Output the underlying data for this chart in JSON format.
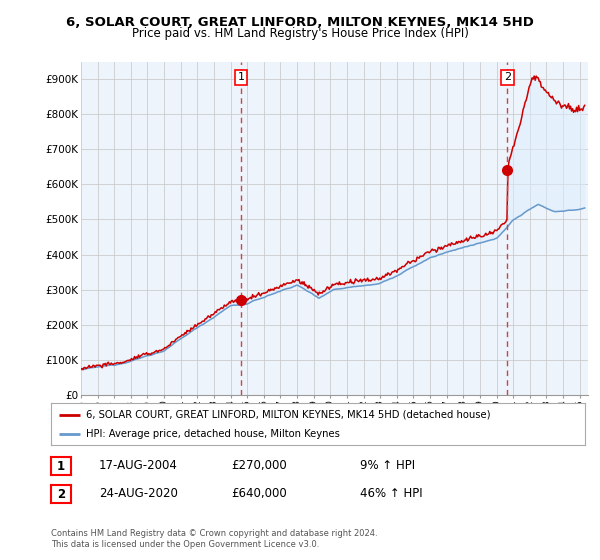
{
  "title": "6, SOLAR COURT, GREAT LINFORD, MILTON KEYNES, MK14 5HD",
  "subtitle": "Price paid vs. HM Land Registry's House Price Index (HPI)",
  "ylabel_ticks": [
    "£0",
    "£100K",
    "£200K",
    "£300K",
    "£400K",
    "£500K",
    "£600K",
    "£700K",
    "£800K",
    "£900K"
  ],
  "ytick_vals": [
    0,
    100000,
    200000,
    300000,
    400000,
    500000,
    600000,
    700000,
    800000,
    900000
  ],
  "ylim": [
    0,
    950000
  ],
  "xlim_start": 1995.0,
  "xlim_end": 2025.5,
  "background_color": "#ffffff",
  "plot_bg_color": "#eef4fb",
  "grid_color": "#cccccc",
  "line1_color": "#cc0000",
  "line2_color": "#6699cc",
  "fill_color": "#ddeeff",
  "purchase1_x": 2004.63,
  "purchase1_y": 270000,
  "purchase2_x": 2020.65,
  "purchase2_y": 640000,
  "dashed_line1_x": 2004.63,
  "dashed_line2_x": 2020.65,
  "legend_line1": "6, SOLAR COURT, GREAT LINFORD, MILTON KEYNES, MK14 5HD (detached house)",
  "legend_line2": "HPI: Average price, detached house, Milton Keynes",
  "annotation1_label": "1",
  "annotation1_date": "17-AUG-2004",
  "annotation1_price": "£270,000",
  "annotation1_hpi": "9% ↑ HPI",
  "annotation2_label": "2",
  "annotation2_date": "24-AUG-2020",
  "annotation2_price": "£640,000",
  "annotation2_hpi": "46% ↑ HPI",
  "footer": "Contains HM Land Registry data © Crown copyright and database right 2024.\nThis data is licensed under the Open Government Licence v3.0."
}
